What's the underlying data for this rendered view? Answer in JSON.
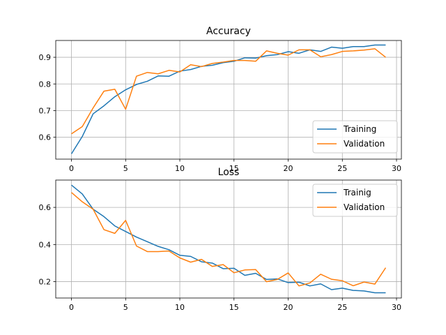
{
  "chart_data": [
    {
      "type": "line",
      "title": "Accuracy",
      "xlabel": "",
      "ylabel": "",
      "xlim": [
        -1.45,
        30.45
      ],
      "ylim": [
        0.518,
        0.963
      ],
      "xticks": [
        0,
        5,
        10,
        15,
        20,
        25,
        30
      ],
      "yticks": [
        0.6,
        0.7,
        0.8,
        0.9
      ],
      "grid": true,
      "legend": "lower-right",
      "x": [
        0,
        1,
        2,
        3,
        4,
        5,
        6,
        7,
        8,
        9,
        10,
        11,
        12,
        13,
        14,
        15,
        16,
        17,
        18,
        19,
        20,
        21,
        22,
        23,
        24,
        25,
        26,
        27,
        28,
        29
      ],
      "series": [
        {
          "name": "Training",
          "color": "#1f77b4",
          "values": [
            0.538,
            0.603,
            0.688,
            0.718,
            0.752,
            0.778,
            0.798,
            0.81,
            0.83,
            0.829,
            0.848,
            0.854,
            0.866,
            0.87,
            0.88,
            0.885,
            0.898,
            0.897,
            0.906,
            0.91,
            0.921,
            0.915,
            0.928,
            0.922,
            0.938,
            0.934,
            0.94,
            0.94,
            0.946,
            0.946
          ]
        },
        {
          "name": "Validation",
          "color": "#ff7f0e",
          "values": [
            0.613,
            0.64,
            0.71,
            0.773,
            0.78,
            0.705,
            0.829,
            0.843,
            0.838,
            0.851,
            0.845,
            0.872,
            0.865,
            0.877,
            0.882,
            0.888,
            0.888,
            0.885,
            0.924,
            0.915,
            0.908,
            0.928,
            0.928,
            0.902,
            0.91,
            0.922,
            0.924,
            0.927,
            0.932,
            0.9
          ]
        }
      ]
    },
    {
      "type": "line",
      "title": "Loss",
      "xlabel": "",
      "ylabel": "",
      "xlim": [
        -1.45,
        30.45
      ],
      "ylim": [
        0.112,
        0.747
      ],
      "xticks": [
        0,
        5,
        10,
        15,
        20,
        25,
        30
      ],
      "yticks": [
        0.2,
        0.4,
        0.6
      ],
      "grid": true,
      "legend": "upper-right",
      "x": [
        0,
        1,
        2,
        3,
        4,
        5,
        6,
        7,
        8,
        9,
        10,
        11,
        12,
        13,
        14,
        15,
        16,
        17,
        18,
        19,
        20,
        21,
        22,
        23,
        24,
        25,
        26,
        27,
        28,
        29
      ],
      "series": [
        {
          "name": "Trainig",
          "color": "#1f77b4",
          "values": [
            0.72,
            0.672,
            0.59,
            0.55,
            0.5,
            0.47,
            0.44,
            0.415,
            0.39,
            0.372,
            0.342,
            0.336,
            0.307,
            0.3,
            0.27,
            0.272,
            0.234,
            0.245,
            0.212,
            0.215,
            0.195,
            0.197,
            0.177,
            0.188,
            0.157,
            0.165,
            0.153,
            0.15,
            0.14,
            0.14
          ]
        },
        {
          "name": "Validation",
          "color": "#ff7f0e",
          "values": [
            0.68,
            0.63,
            0.59,
            0.48,
            0.46,
            0.53,
            0.392,
            0.362,
            0.362,
            0.365,
            0.328,
            0.305,
            0.32,
            0.282,
            0.292,
            0.248,
            0.263,
            0.265,
            0.2,
            0.212,
            0.247,
            0.177,
            0.193,
            0.24,
            0.213,
            0.205,
            0.178,
            0.198,
            0.187,
            0.275
          ]
        }
      ]
    }
  ]
}
